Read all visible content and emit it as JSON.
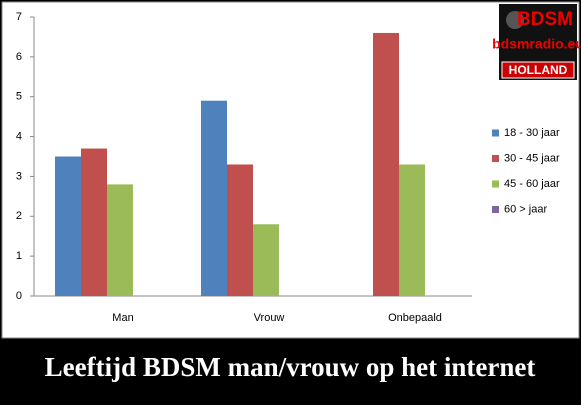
{
  "chart_data": {
    "type": "bar",
    "title": "Leeftijd BDSM man/vrouw op het internet",
    "logo": {
      "line1": "BDSM",
      "line2": "bdsmradio.eu",
      "line3": "HOLLAND"
    },
    "categories": [
      "Man",
      "Vrouw",
      "Onbepaald"
    ],
    "series": [
      {
        "name": "18 - 30 jaar",
        "color": "#4f81bd",
        "values": [
          3.5,
          4.9,
          null
        ]
      },
      {
        "name": "30 - 45 jaar",
        "color": "#c0504d",
        "values": [
          3.7,
          3.3,
          6.6
        ]
      },
      {
        "name": "45 - 60 jaar",
        "color": "#9bbb59",
        "values": [
          2.8,
          1.8,
          3.3
        ]
      },
      {
        "name": "60 > jaar",
        "color": "#8064a2",
        "values": [
          null,
          null,
          null
        ]
      }
    ],
    "ylim": [
      0,
      7
    ],
    "yticks": [
      0,
      1,
      2,
      3,
      4,
      5,
      6,
      7
    ],
    "legend": "right"
  }
}
